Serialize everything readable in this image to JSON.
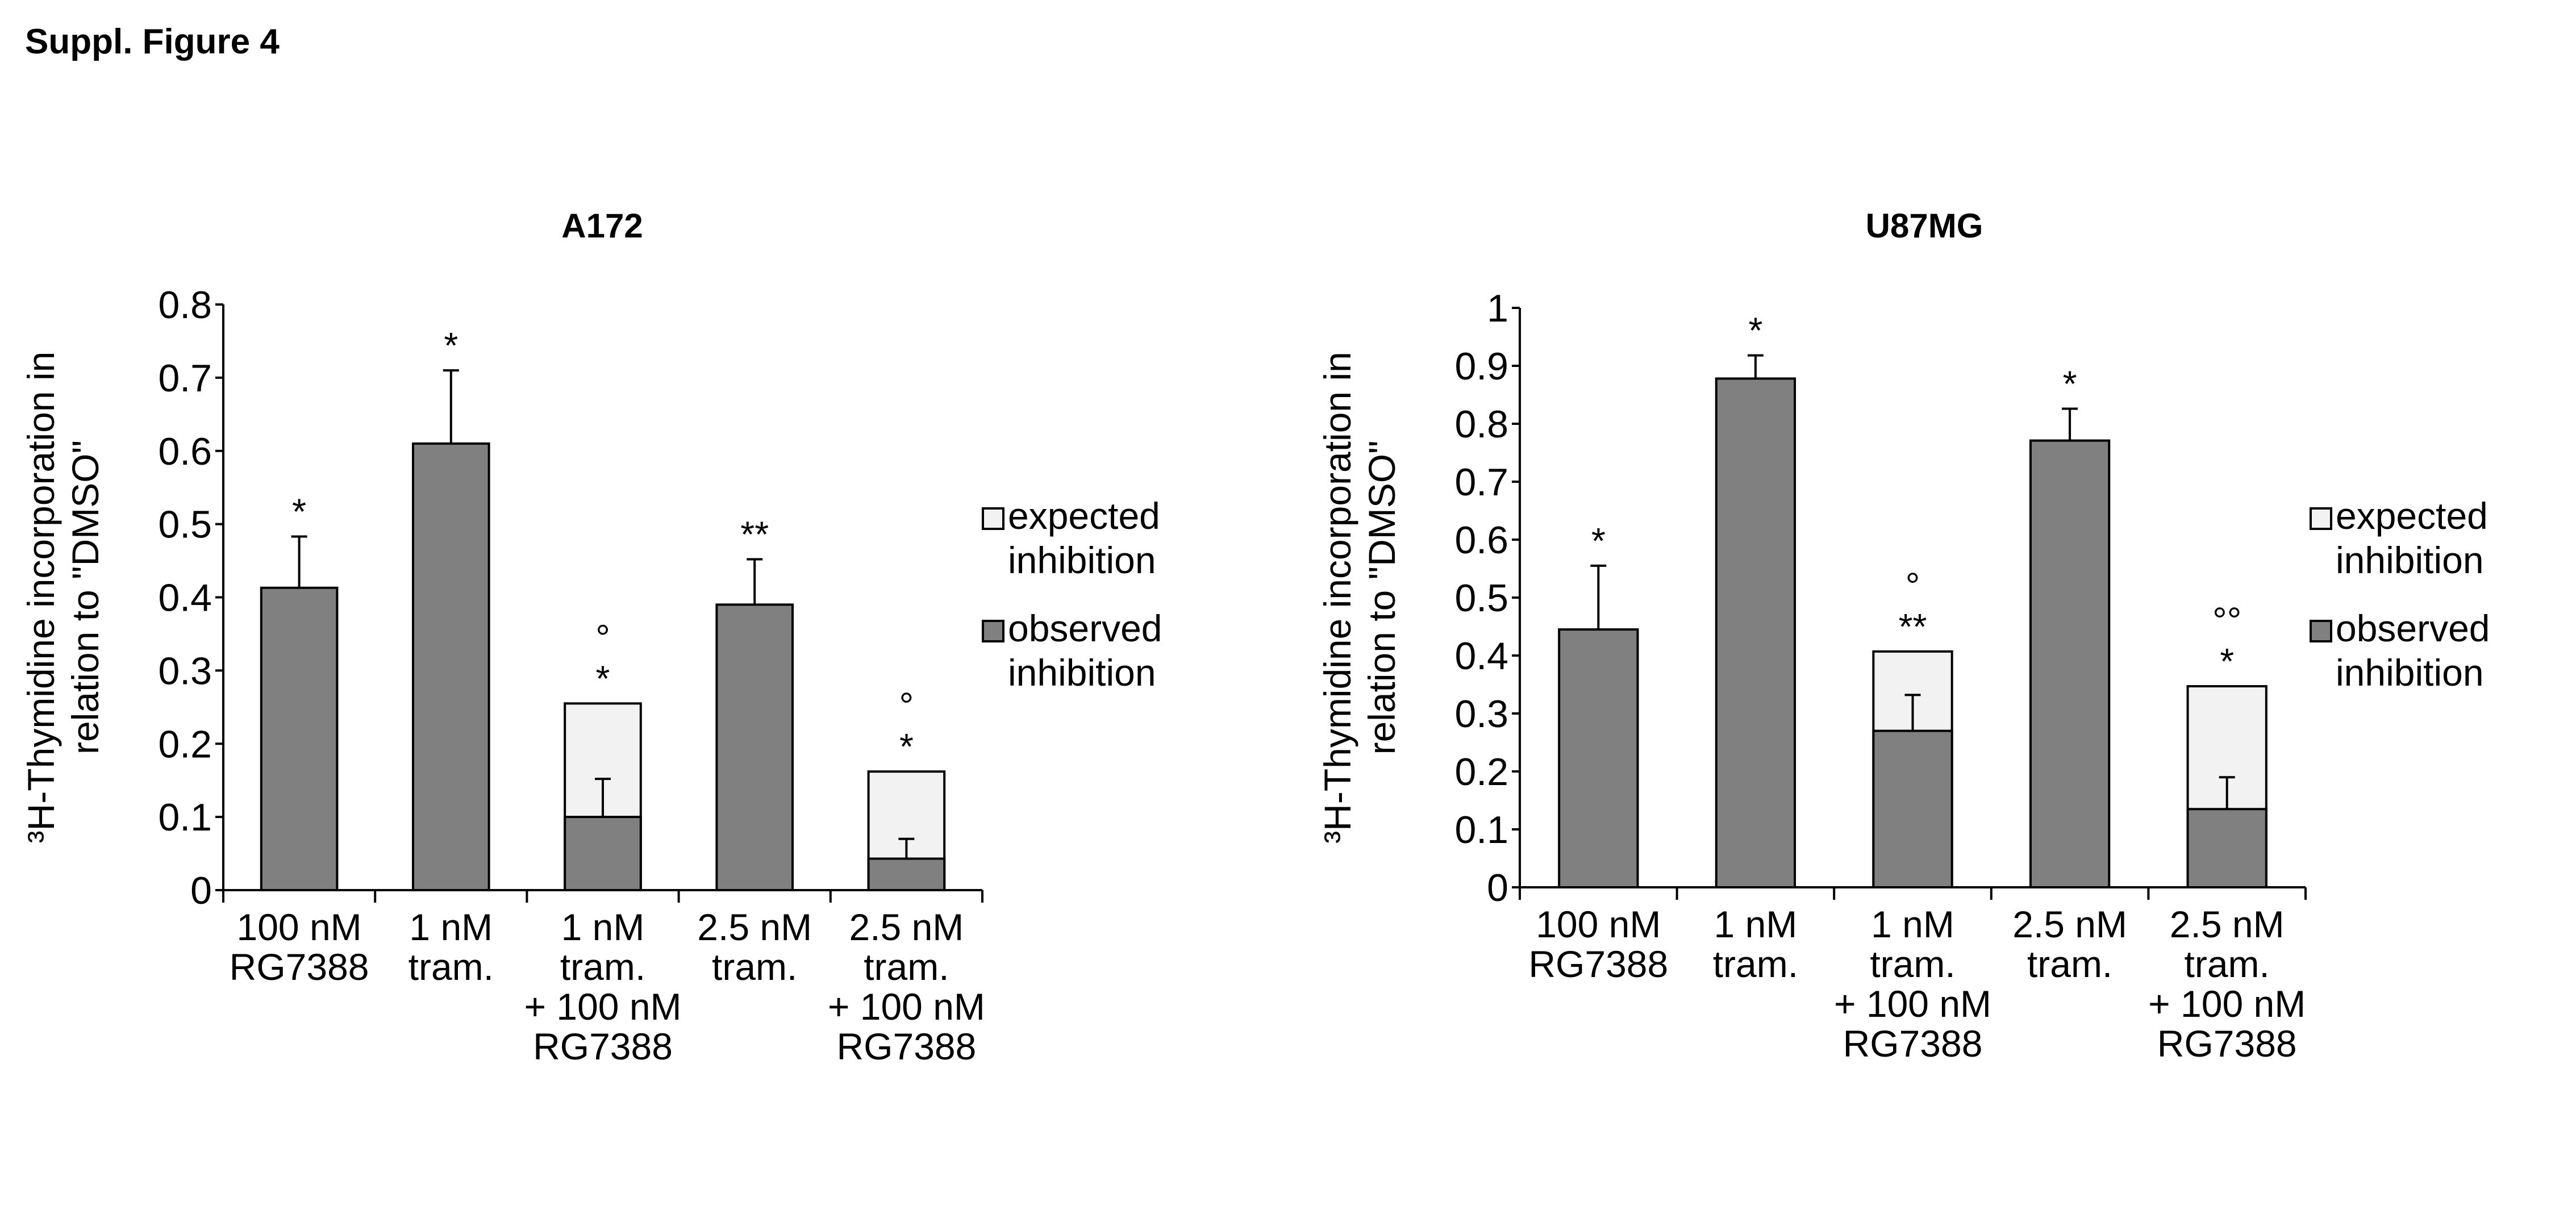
{
  "figure_title": "Suppl. Figure 4",
  "colors": {
    "observed": "#808080",
    "expected": "#f2f2f2",
    "stroke": "#000000"
  },
  "chart_data": [
    {
      "type": "bar",
      "title": "A172",
      "ylabel_line1": "³H-Thymidine incorporation in",
      "ylabel_line2": "relation to \"DMSO\"",
      "ylim": [
        0,
        0.8
      ],
      "yticks": [
        "0",
        "0.1",
        "0.2",
        "0.3",
        "0.4",
        "0.5",
        "0.6",
        "0.7",
        "0.8"
      ],
      "ytick_values": [
        0,
        0.1,
        0.2,
        0.3,
        0.4,
        0.5,
        0.6,
        0.7,
        0.8
      ],
      "categories": [
        [
          "100 nM",
          "RG7388"
        ],
        [
          "1 nM",
          "tram."
        ],
        [
          "1 nM",
          "tram.",
          "+ 100 nM",
          "RG7388"
        ],
        [
          "2.5 nM",
          "tram."
        ],
        [
          "2.5 nM",
          "tram.",
          "+ 100 nM",
          "RG7388"
        ]
      ],
      "series": [
        {
          "name": "observed inhibition",
          "values": [
            0.413,
            0.61,
            0.1,
            0.39,
            0.043
          ],
          "error": [
            0.07,
            0.1,
            0.052,
            0.062,
            0.027
          ]
        },
        {
          "name": "expected inhibition",
          "values": [
            null,
            null,
            0.255,
            null,
            0.162
          ]
        }
      ],
      "annotations": [
        "*",
        "*",
        "°\n*",
        "**",
        "°\n*"
      ],
      "legend": [
        "expected inhibition",
        "observed inhibition"
      ],
      "legend_lines": [
        [
          "expected",
          "inhibition"
        ],
        [
          "observed",
          "inhibition"
        ]
      ],
      "legend_position": "right"
    },
    {
      "type": "bar",
      "title": "U87MG",
      "ylabel_line1": "³H-Thymidine incorporation in",
      "ylabel_line2": "relation to \"DMSO\"",
      "ylim": [
        0,
        1
      ],
      "yticks": [
        "0",
        "0.1",
        "0.2",
        "0.3",
        "0.4",
        "0.5",
        "0.6",
        "0.7",
        "0.8",
        "0.9",
        "1"
      ],
      "ytick_values": [
        0,
        0.1,
        0.2,
        0.3,
        0.4,
        0.5,
        0.6,
        0.7,
        0.8,
        0.9,
        1
      ],
      "categories": [
        [
          "100 nM",
          "RG7388"
        ],
        [
          "1 nM",
          "tram."
        ],
        [
          "1 nM",
          "tram.",
          "+ 100 nM",
          "RG7388"
        ],
        [
          "2.5 nM",
          "tram."
        ],
        [
          "2.5 nM",
          "tram.",
          "+ 100 nM",
          "RG7388"
        ]
      ],
      "series": [
        {
          "name": "observed inhibition",
          "values": [
            0.445,
            0.878,
            0.27,
            0.771,
            0.135
          ],
          "error": [
            0.11,
            0.04,
            0.062,
            0.055,
            0.055
          ]
        },
        {
          "name": "expected inhibition",
          "values": [
            null,
            null,
            0.407,
            null,
            0.347
          ]
        }
      ],
      "annotations": [
        "*",
        "*",
        "°\n**",
        "*",
        "°°\n*"
      ],
      "legend": [
        "expected inhibition",
        "observed inhibition"
      ],
      "legend_lines": [
        [
          "expected",
          "inhibition"
        ],
        [
          "observed",
          "inhibition"
        ]
      ],
      "legend_position": "right"
    }
  ]
}
